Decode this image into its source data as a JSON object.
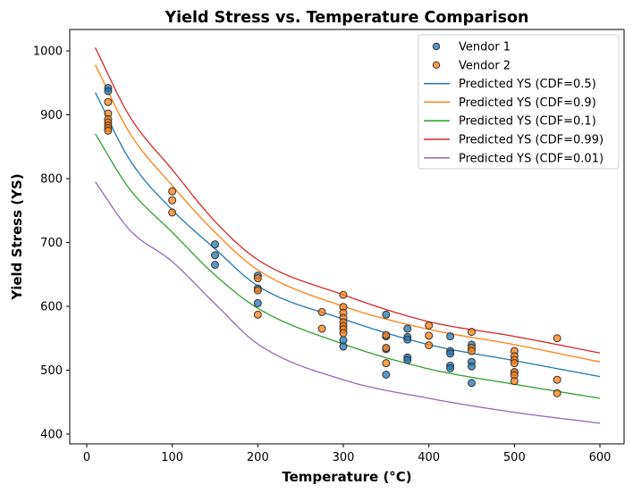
{
  "chart_data": {
    "type": "scatter",
    "title": "Yield Stress vs. Temperature Comparison",
    "xlabel": "Temperature (°C)",
    "ylabel": "Yield Stress (YS)",
    "xlim": [
      -20,
      630
    ],
    "ylim": [
      388,
      1033
    ],
    "xticks": [
      0,
      100,
      200,
      300,
      400,
      500,
      600
    ],
    "yticks": [
      400,
      500,
      600,
      700,
      800,
      900,
      1000
    ],
    "grid": false,
    "legend_position": "top-right",
    "scatter_series": [
      {
        "name": "Vendor 1",
        "color": "#1f77b4",
        "points": [
          [
            25,
            942
          ],
          [
            25,
            937
          ],
          [
            150,
            697
          ],
          [
            150,
            680
          ],
          [
            150,
            665
          ],
          [
            200,
            648
          ],
          [
            200,
            628
          ],
          [
            200,
            605
          ],
          [
            300,
            547
          ],
          [
            300,
            537
          ],
          [
            350,
            587
          ],
          [
            350,
            553
          ],
          [
            350,
            533
          ],
          [
            350,
            493
          ],
          [
            375,
            565
          ],
          [
            375,
            552
          ],
          [
            375,
            548
          ],
          [
            375,
            520
          ],
          [
            375,
            516
          ],
          [
            425,
            553
          ],
          [
            425,
            530
          ],
          [
            425,
            526
          ],
          [
            425,
            507
          ],
          [
            425,
            503
          ],
          [
            450,
            540
          ],
          [
            450,
            513
          ],
          [
            450,
            506
          ],
          [
            450,
            480
          ],
          [
            500,
            497
          ]
        ]
      },
      {
        "name": "Vendor 2",
        "color": "#ff7f0e",
        "points": [
          [
            25,
            920
          ],
          [
            25,
            902
          ],
          [
            25,
            893
          ],
          [
            25,
            888
          ],
          [
            25,
            883
          ],
          [
            25,
            879
          ],
          [
            25,
            875
          ],
          [
            100,
            780
          ],
          [
            100,
            766
          ],
          [
            100,
            747
          ],
          [
            200,
            644
          ],
          [
            200,
            625
          ],
          [
            200,
            587
          ],
          [
            275,
            591
          ],
          [
            275,
            565
          ],
          [
            300,
            618
          ],
          [
            300,
            599
          ],
          [
            300,
            590
          ],
          [
            300,
            582
          ],
          [
            300,
            575
          ],
          [
            300,
            569
          ],
          [
            300,
            564
          ],
          [
            300,
            558
          ],
          [
            350,
            555
          ],
          [
            350,
            535
          ],
          [
            350,
            511
          ],
          [
            400,
            570
          ],
          [
            400,
            554
          ],
          [
            400,
            539
          ],
          [
            450,
            560
          ],
          [
            450,
            535
          ],
          [
            450,
            530
          ],
          [
            500,
            530
          ],
          [
            500,
            522
          ],
          [
            500,
            516
          ],
          [
            500,
            511
          ],
          [
            500,
            497
          ],
          [
            500,
            492
          ],
          [
            500,
            483
          ],
          [
            550,
            550
          ],
          [
            550,
            485
          ],
          [
            550,
            464
          ]
        ]
      }
    ],
    "line_series": [
      {
        "name": "Predicted YS (CDF=0.5)",
        "color": "#1f77b4",
        "x": [
          10,
          50,
          100,
          150,
          200,
          300,
          400,
          500,
          600
        ],
        "y": [
          935,
          830,
          751,
          690,
          632,
          580,
          540,
          515,
          490
        ]
      },
      {
        "name": "Predicted YS (CDF=0.9)",
        "color": "#ff7f0e",
        "x": [
          10,
          50,
          100,
          150,
          200,
          300,
          400,
          500,
          600
        ],
        "y": [
          978,
          872,
          789,
          716,
          657,
          600,
          564,
          540,
          513
        ]
      },
      {
        "name": "Predicted YS (CDF=0.1)",
        "color": "#2ca02c",
        "x": [
          10,
          50,
          100,
          150,
          200,
          300,
          400,
          500,
          600
        ],
        "y": [
          870,
          784,
          716,
          649,
          597,
          541,
          502,
          478,
          456
        ]
      },
      {
        "name": "Predicted YS (CDF=0.99)",
        "color": "#d62728",
        "x": [
          10,
          50,
          100,
          150,
          200,
          300,
          400,
          500,
          600
        ],
        "y": [
          1005,
          898,
          814,
          733,
          673,
          618,
          576,
          553,
          527
        ]
      },
      {
        "name": "Predicted YS (CDF=0.01)",
        "color": "#9467bd",
        "x": [
          10,
          50,
          100,
          150,
          200,
          300,
          400,
          500,
          600
        ],
        "y": [
          795,
          720,
          670,
          604,
          541,
          485,
          456,
          434,
          417
        ]
      }
    ]
  }
}
